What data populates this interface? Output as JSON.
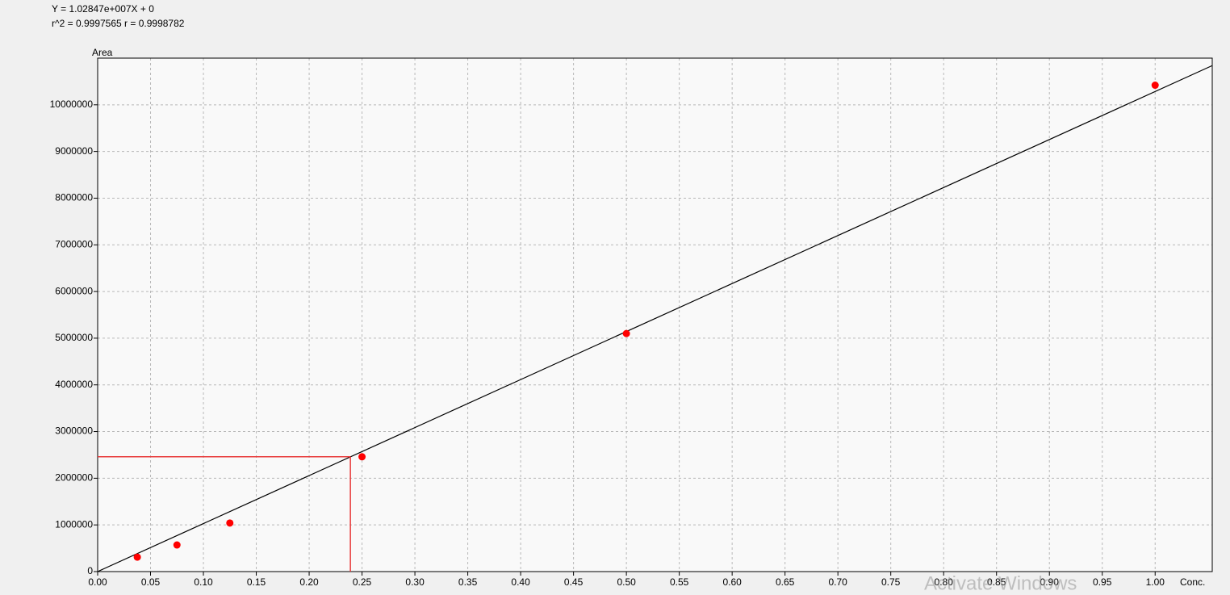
{
  "chart_data": {
    "type": "scatter",
    "equation": "Y = 1.02847e+007X + 0",
    "stats": "r^2 = 0.9997565  r = 0.9998782",
    "y_label": "Area",
    "x_label": "Conc.",
    "x": [
      0.0375,
      0.075,
      0.125,
      0.25,
      0.5,
      1.0
    ],
    "values": [
      310000,
      570000,
      1040000,
      2460000,
      5100000,
      10420000
    ],
    "color": "#ff0000",
    "fit_line": {
      "slope": 10284700,
      "intercept": 0,
      "color": "#000000"
    },
    "crosshair": {
      "x": 0.239,
      "y": 2460000,
      "color": "#e83a3a"
    },
    "xlim": [
      0,
      1.054
    ],
    "ylim": [
      0,
      11000000
    ],
    "xticks": [
      {
        "value": 0,
        "label": "0.00"
      },
      {
        "value": 0.05,
        "label": "0.05"
      },
      {
        "value": 0.1,
        "label": "0.10"
      },
      {
        "value": 0.15,
        "label": "0.15"
      },
      {
        "value": 0.2,
        "label": "0.20"
      },
      {
        "value": 0.25,
        "label": "0.25"
      },
      {
        "value": 0.3,
        "label": "0.30"
      },
      {
        "value": 0.35,
        "label": "0.35"
      },
      {
        "value": 0.4,
        "label": "0.40"
      },
      {
        "value": 0.45,
        "label": "0.45"
      },
      {
        "value": 0.5,
        "label": "0.50"
      },
      {
        "value": 0.55,
        "label": "0.55"
      },
      {
        "value": 0.6,
        "label": "0.60"
      },
      {
        "value": 0.65,
        "label": "0.65"
      },
      {
        "value": 0.7,
        "label": "0.70"
      },
      {
        "value": 0.75,
        "label": "0.75"
      },
      {
        "value": 0.8,
        "label": "0.80"
      },
      {
        "value": 0.85,
        "label": "0.85"
      },
      {
        "value": 0.9,
        "label": "0.90"
      },
      {
        "value": 0.95,
        "label": "0.95"
      },
      {
        "value": 1.0,
        "label": "1.00"
      }
    ],
    "yticks": [
      0,
      1000000,
      2000000,
      3000000,
      4000000,
      5000000,
      6000000,
      7000000,
      8000000,
      9000000,
      10000000
    ],
    "grid": true,
    "watermark": "Activate Windows"
  }
}
